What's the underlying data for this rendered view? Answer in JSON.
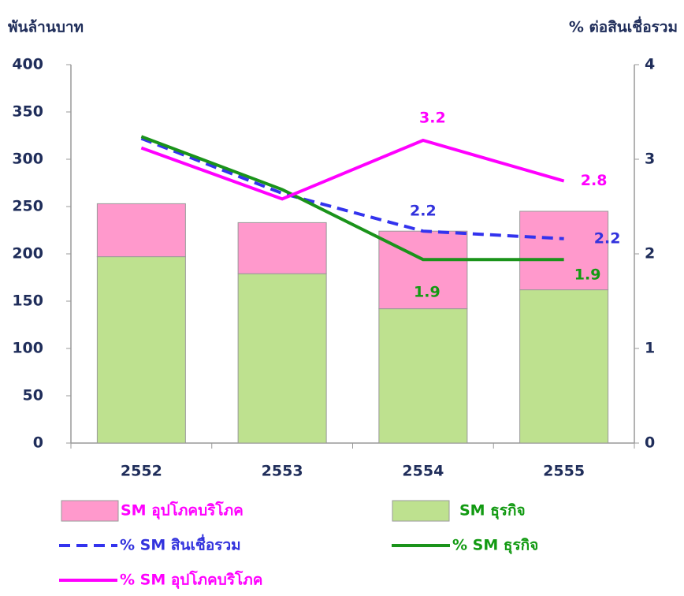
{
  "chart_data": {
    "type": "bar",
    "y_axis_title": "พันล้านบาท",
    "y2_axis_title": "% ต่อสินเชื่อรวม",
    "categories": [
      "2552",
      "2553",
      "2554",
      "2555"
    ],
    "ylim": [
      0,
      400
    ],
    "yticks": [
      0,
      50,
      100,
      150,
      200,
      250,
      300,
      350,
      400
    ],
    "y2lim": [
      0,
      4
    ],
    "y2ticks": [
      0,
      1,
      2,
      3,
      4
    ],
    "grid": false,
    "legend": "bottom",
    "series": [
      {
        "name": "SM ธุรกิจ",
        "type": "bar",
        "stack": true,
        "color": "#bee18f",
        "text_color": "#129a12",
        "values": [
          197,
          179,
          142,
          162
        ]
      },
      {
        "name": "SM อุปโภคบริโภค",
        "type": "bar",
        "stack": true,
        "color": "#ff99cc",
        "text_color": "#ff00ff",
        "values": [
          56,
          54,
          82,
          83
        ]
      },
      {
        "name": "% SM สินเชื่อรวม",
        "type": "line",
        "dashed": true,
        "axis": "y2",
        "color": "#3333ee",
        "text_color": "#3333dd",
        "values": [
          3.22,
          2.64,
          2.24,
          2.16
        ],
        "value_labels": [
          null,
          null,
          "2.2",
          "2.2"
        ]
      },
      {
        "name": "% SM ธุรกิจ",
        "type": "line",
        "dashed": false,
        "axis": "y2",
        "color": "#1a931a",
        "text_color": "#129a12",
        "values": [
          3.24,
          2.68,
          1.94,
          1.94
        ],
        "value_labels": [
          null,
          null,
          "1.9",
          "1.9"
        ]
      },
      {
        "name": "% SM อุปโภคบริโภค",
        "type": "line",
        "dashed": false,
        "axis": "y2",
        "color": "#ff00ff",
        "text_color": "#ff00ff",
        "values": [
          3.12,
          2.58,
          3.2,
          2.77
        ],
        "value_labels": [
          null,
          null,
          "3.2",
          "2.8"
        ]
      }
    ]
  }
}
